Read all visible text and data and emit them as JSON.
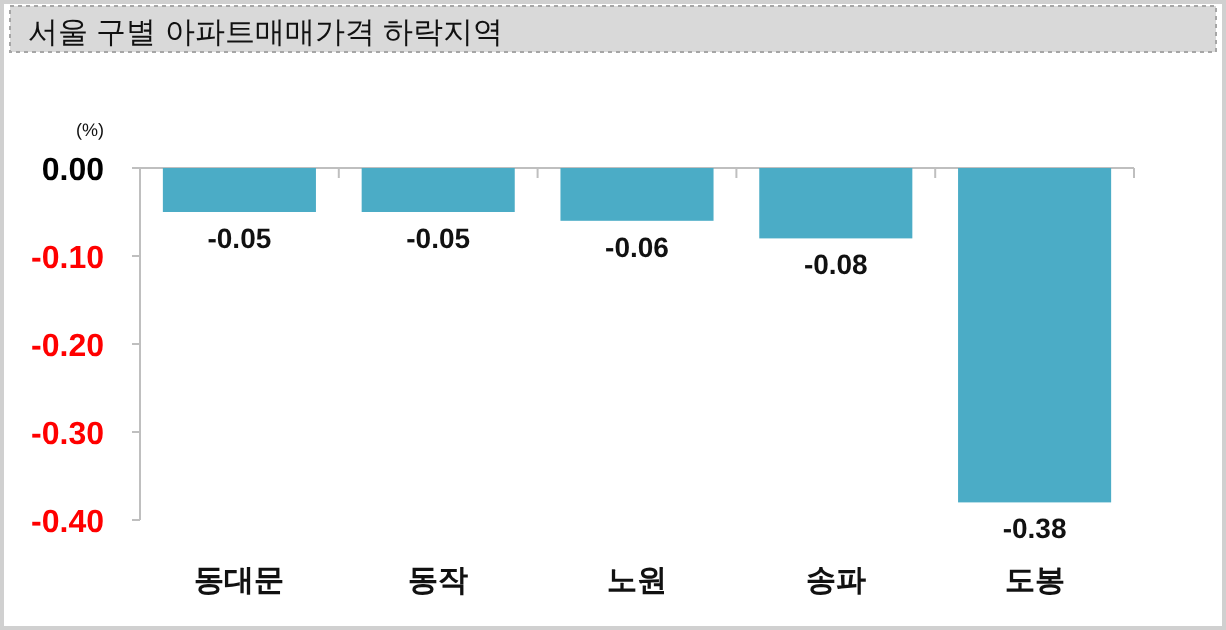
{
  "chart_data": {
    "type": "bar",
    "title": "서울 구별 아파트매매가격 하락지역",
    "ylabel": "(%)",
    "categories": [
      "동대문",
      "동작",
      "노원",
      "송파",
      "도봉"
    ],
    "values": [
      -0.05,
      -0.05,
      -0.06,
      -0.08,
      -0.38
    ],
    "color": "#4bacc6",
    "ylim": [
      -0.4,
      0
    ],
    "yticks": [
      {
        "value": 0,
        "label": "0.00"
      },
      {
        "value": -0.1,
        "label": "-0.10"
      },
      {
        "value": -0.2,
        "label": "-0.20"
      },
      {
        "value": -0.3,
        "label": "-0.30"
      },
      {
        "value": -0.4,
        "label": "-0.40"
      }
    ],
    "data_labels": true
  }
}
